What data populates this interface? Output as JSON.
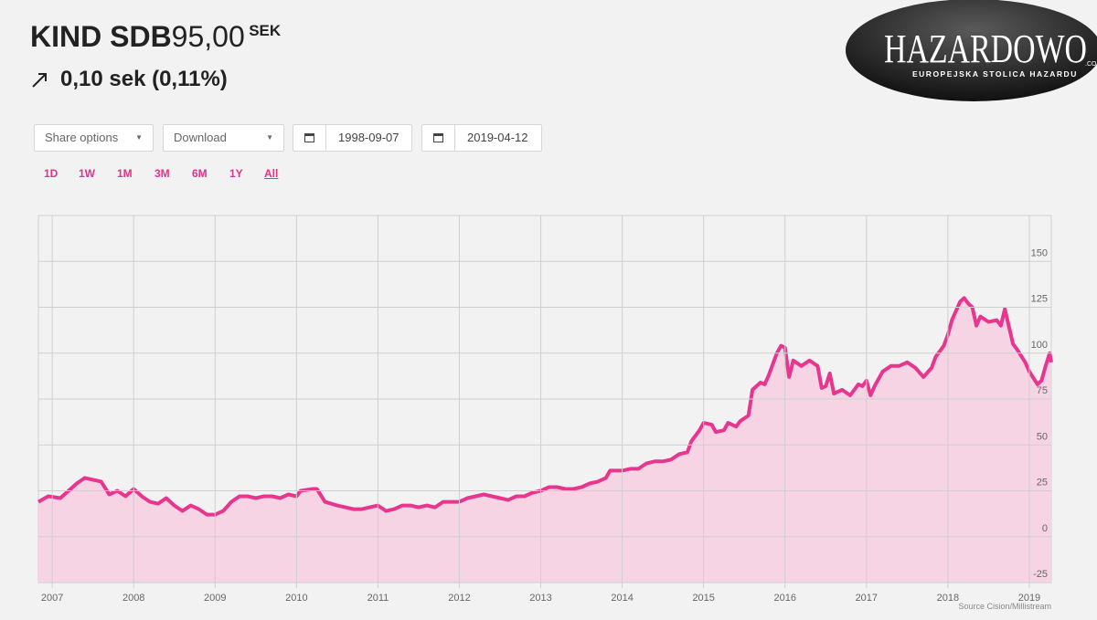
{
  "header": {
    "name": "KIND SDB",
    "price": "95,00",
    "currency": "SEK",
    "change": "0,10 sek (0,11%)"
  },
  "controls": {
    "share": "Share options",
    "download": "Download",
    "start_date": "1998-09-07",
    "end_date": "2019-04-12",
    "ranges": [
      "1D",
      "1W",
      "1M",
      "3M",
      "6M",
      "1Y",
      "All"
    ]
  },
  "logo": {
    "name": "HAZARDOWO",
    "tagline": "EUROPEJSKA STOLICA HAZARDU",
    "suffix": ".CO"
  },
  "chart_data": {
    "type": "area",
    "source": "Source Cision/Millistream",
    "x": [
      2006.83,
      2006.95,
      2007.1,
      2007.2,
      2007.3,
      2007.4,
      2007.5,
      2007.6,
      2007.7,
      2007.8,
      2007.9,
      2008.0,
      2008.1,
      2008.2,
      2008.3,
      2008.4,
      2008.5,
      2008.6,
      2008.7,
      2008.8,
      2008.9,
      2009.0,
      2009.1,
      2009.2,
      2009.3,
      2009.4,
      2009.5,
      2009.6,
      2009.7,
      2009.8,
      2009.9,
      2010.0,
      2010.05,
      2010.2,
      2010.25,
      2010.35,
      2010.5,
      2010.6,
      2010.7,
      2010.8,
      2010.9,
      2011.0,
      2011.1,
      2011.2,
      2011.3,
      2011.4,
      2011.5,
      2011.6,
      2011.7,
      2011.8,
      2011.9,
      2012.0,
      2012.1,
      2012.2,
      2012.3,
      2012.4,
      2012.5,
      2012.6,
      2012.7,
      2012.8,
      2012.9,
      2013.0,
      2013.1,
      2013.2,
      2013.3,
      2013.4,
      2013.5,
      2013.6,
      2013.7,
      2013.8,
      2013.85,
      2014.0,
      2014.1,
      2014.2,
      2014.3,
      2014.4,
      2014.5,
      2014.6,
      2014.7,
      2014.8,
      2014.85,
      2014.95,
      2015.0,
      2015.1,
      2015.15,
      2015.25,
      2015.3,
      2015.4,
      2015.45,
      2015.55,
      2015.6,
      2015.7,
      2015.75,
      2015.8,
      2015.9,
      2015.95,
      2016.0,
      2016.05,
      2016.1,
      2016.2,
      2016.3,
      2016.4,
      2016.45,
      2016.5,
      2016.55,
      2016.6,
      2016.7,
      2016.8,
      2016.9,
      2016.95,
      2017.0,
      2017.05,
      2017.1,
      2017.2,
      2017.3,
      2017.4,
      2017.5,
      2017.6,
      2017.7,
      2017.8,
      2017.85,
      2017.95,
      2018.0,
      2018.05,
      2018.15,
      2018.2,
      2018.25,
      2018.3,
      2018.35,
      2018.4,
      2018.5,
      2018.6,
      2018.65,
      2018.7,
      2018.8,
      2018.85,
      2018.95,
      2019.0,
      2019.1,
      2019.15,
      2019.2,
      2019.25,
      2019.27
    ],
    "series": [
      {
        "color": "#e8368f",
        "area_color": "#f6d4e3",
        "values": [
          19,
          22,
          21,
          25,
          29,
          32,
          31,
          30,
          23,
          25,
          22,
          26,
          22,
          19,
          18,
          21,
          17,
          14,
          17,
          15,
          12,
          12,
          14,
          19,
          22,
          22,
          21,
          22,
          22,
          21,
          23,
          22,
          25,
          26,
          26,
          19,
          17,
          16,
          15,
          15,
          16,
          17,
          14,
          15,
          17,
          17,
          16,
          17,
          16,
          19,
          19,
          19,
          21,
          22,
          23,
          22,
          21,
          20,
          22,
          22,
          24,
          25,
          27,
          27,
          26,
          26,
          27,
          29,
          30,
          32,
          36,
          36,
          37,
          37,
          40,
          41,
          41,
          42,
          45,
          46,
          52,
          58,
          62,
          61,
          57,
          58,
          62,
          60,
          63,
          66,
          80,
          84,
          83,
          88,
          100,
          104,
          103,
          87,
          96,
          93,
          96,
          93,
          81,
          82,
          89,
          78,
          80,
          77,
          83,
          82,
          85,
          77,
          82,
          90,
          93,
          93,
          95,
          92,
          87,
          92,
          98,
          104,
          110,
          118,
          128,
          130,
          127,
          125,
          115,
          120,
          117,
          118,
          115,
          124,
          105,
          102,
          95,
          90,
          83,
          85,
          93,
          100,
          95
        ]
      }
    ],
    "xlim": [
      2006.83,
      2019.27
    ],
    "ylim": [
      -25,
      175
    ],
    "xticks": [
      2007,
      2008,
      2009,
      2010,
      2011,
      2012,
      2013,
      2014,
      2015,
      2016,
      2017,
      2018,
      2019
    ],
    "yticks": [
      -25,
      0,
      25,
      50,
      75,
      100,
      125,
      150
    ],
    "grid": true
  }
}
